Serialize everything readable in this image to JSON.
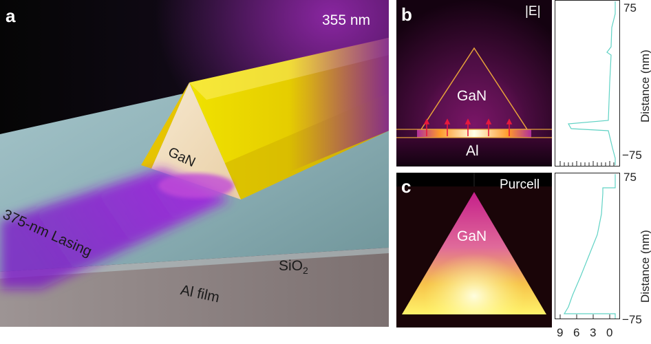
{
  "panel_a": {
    "label": "a",
    "wavelength_label": "355 nm",
    "nanowire_label": "GaN",
    "lasing_label": "375-nm Lasing",
    "substrate_label_main": "SiO",
    "substrate_label_sub": "2",
    "film_label": "Al film"
  },
  "panel_b": {
    "label": "b",
    "field_label": "|E|",
    "nanowire_label": "GaN",
    "metal_label": "Al",
    "colors": {
      "triangle_outline": "#e8a33a",
      "arrows": "#e8193c"
    }
  },
  "panel_c": {
    "label": "c",
    "title": "Purcell",
    "nanowire_label": "GaN"
  },
  "profile_axes": {
    "ylabel": "Distance (nm)",
    "yticks": [
      "75",
      "−75"
    ],
    "xticks": [
      "9",
      "6",
      "3",
      "0"
    ],
    "line_color": "#5fd2c4"
  }
}
